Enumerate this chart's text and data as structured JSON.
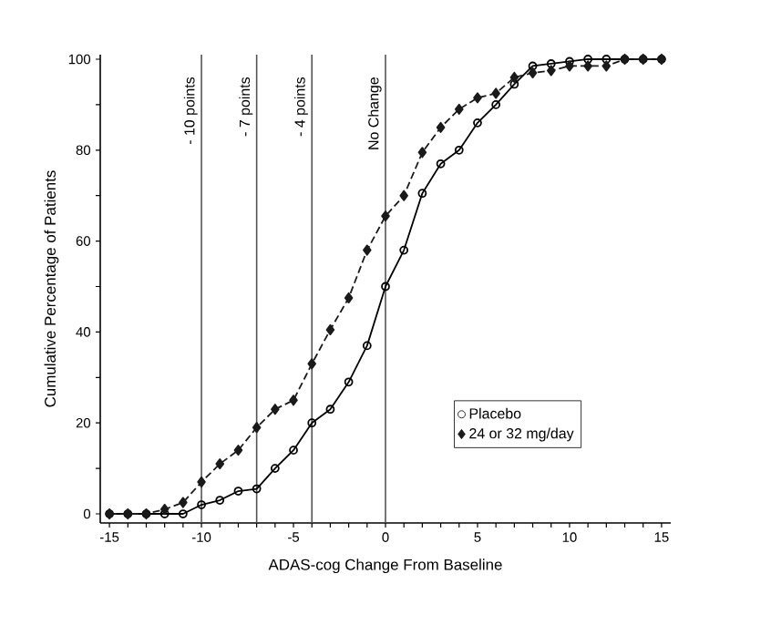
{
  "chart_data": {
    "type": "line",
    "xlabel": "ADAS-cog Change From Baseline",
    "ylabel": "Cumulative  Percentage of Patients",
    "x": [
      -15,
      -14,
      -13,
      -12,
      -11,
      -10,
      -9,
      -8,
      -7,
      -6,
      -5,
      -4,
      -3,
      -2,
      -1,
      0,
      1,
      2,
      3,
      4,
      5,
      6,
      7,
      8,
      9,
      10,
      11,
      12,
      13,
      14,
      15
    ],
    "series": [
      {
        "name": "Placebo",
        "color": "#000000",
        "marker": "circle",
        "line_style": "solid",
        "values": [
          0,
          0,
          0,
          0,
          0,
          2,
          3,
          5,
          5.5,
          10,
          14,
          20,
          23,
          29,
          37,
          50,
          58,
          70.5,
          77,
          80,
          86,
          90,
          94.5,
          98.5,
          99,
          99.5,
          100,
          100,
          100,
          100,
          100
        ]
      },
      {
        "name": "24 or 32 mg/day",
        "color": "#1a1a1a",
        "marker": "diamond",
        "line_style": "dashed",
        "values": [
          0,
          0,
          0,
          1,
          2.5,
          7,
          11,
          14,
          19,
          23,
          25,
          33,
          40.5,
          47.5,
          58,
          65.5,
          70,
          79.5,
          85,
          89,
          91.5,
          92.5,
          96,
          97,
          97.5,
          98.5,
          98.5,
          98.5,
          100,
          100,
          100
        ]
      }
    ],
    "xlim": [
      -15.5,
      15.5
    ],
    "ylim": [
      -2,
      101
    ],
    "xticks": [
      -15,
      {
        "value": -14,
        "label": null
      },
      {
        "value": -13,
        "label": null
      },
      {
        "value": -12,
        "label": null
      },
      {
        "value": -11,
        "label": null
      },
      -10,
      {
        "value": -9,
        "label": null
      },
      {
        "value": -8,
        "label": null
      },
      {
        "value": -7,
        "label": null
      },
      {
        "value": -6,
        "label": null
      },
      -5,
      {
        "value": -4,
        "label": null
      },
      {
        "value": -3,
        "label": null
      },
      {
        "value": -2,
        "label": null
      },
      {
        "value": -1,
        "label": null
      },
      0,
      {
        "value": 1,
        "label": null
      },
      {
        "value": 2,
        "label": null
      },
      {
        "value": 3,
        "label": null
      },
      {
        "value": 4,
        "label": null
      },
      5,
      {
        "value": 6,
        "label": null
      },
      {
        "value": 7,
        "label": null
      },
      {
        "value": 8,
        "label": null
      },
      {
        "value": 9,
        "label": null
      },
      10,
      {
        "value": 11,
        "label": null
      },
      {
        "value": 12,
        "label": null
      },
      {
        "value": 13,
        "label": null
      },
      {
        "value": 14,
        "label": null
      },
      15
    ],
    "yticks": [
      0,
      {
        "value": 10,
        "label": null
      },
      20,
      {
        "value": 30,
        "label": null
      },
      40,
      {
        "value": 50,
        "label": null
      },
      60,
      {
        "value": 70,
        "label": null
      },
      80,
      {
        "value": 90,
        "label": null
      },
      100
    ],
    "ref_lines": [
      {
        "axis": "x",
        "value": -10,
        "label": "- 10 points",
        "color": "#555555"
      },
      {
        "axis": "x",
        "value": -7,
        "label": "- 7 points",
        "color": "#555555"
      },
      {
        "axis": "x",
        "value": -4,
        "label": "- 4 points",
        "color": "#555555"
      },
      {
        "axis": "x",
        "value": 0,
        "label": "No Change",
        "color": "#555555"
      }
    ],
    "grid": false,
    "legend": "bottom right"
  }
}
